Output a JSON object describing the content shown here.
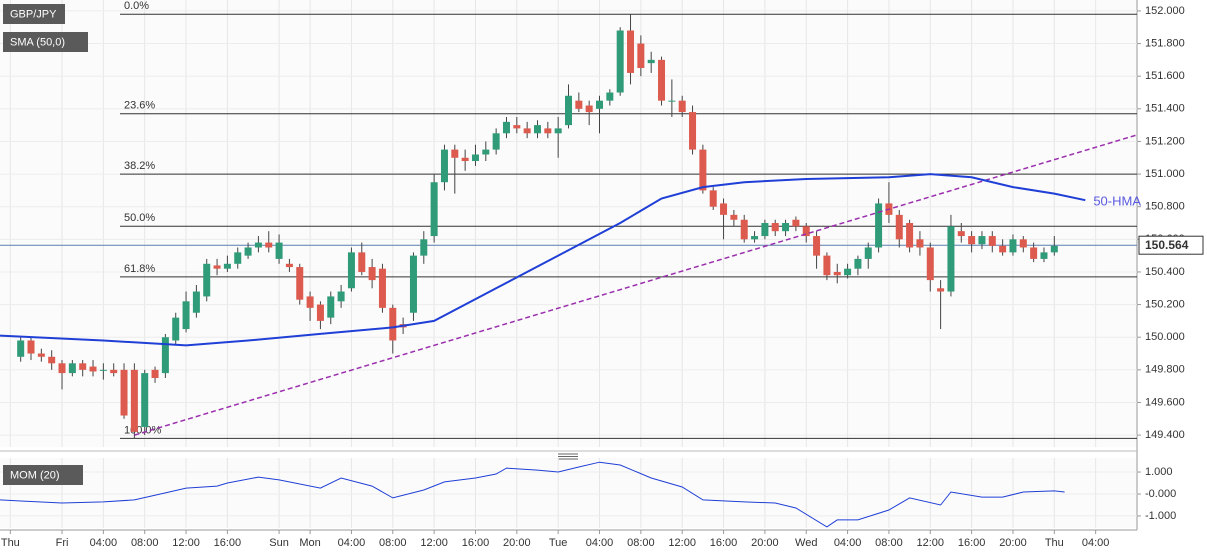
{
  "chart_data": [
    {
      "type": "candlestick",
      "symbol": "GBP/JPY",
      "indicator": "SMA (50,0)",
      "hma_label": "50-HMA",
      "last_price": 150.564,
      "xlim": [
        -1,
        109
      ],
      "ylim": [
        149.327,
        152.067
      ],
      "xticks": [
        {
          "value": 0,
          "label": "Thu"
        },
        {
          "value": 5,
          "label": "Fri"
        },
        {
          "value": 9,
          "label": "04:00"
        },
        {
          "value": 13,
          "label": "08:00"
        },
        {
          "value": 17,
          "label": "12:00"
        },
        {
          "value": 21,
          "label": "16:00"
        },
        {
          "value": 26,
          "label": "Sun"
        },
        {
          "value": 29,
          "label": "Mon"
        },
        {
          "value": 33,
          "label": "04:00"
        },
        {
          "value": 37,
          "label": "08:00"
        },
        {
          "value": 41,
          "label": "12:00"
        },
        {
          "value": 45,
          "label": "16:00"
        },
        {
          "value": 49,
          "label": "20:00"
        },
        {
          "value": 53,
          "label": "Tue"
        },
        {
          "value": 57,
          "label": "04:00"
        },
        {
          "value": 61,
          "label": "08:00"
        },
        {
          "value": 65,
          "label": "12:00"
        },
        {
          "value": 69,
          "label": "16:00"
        },
        {
          "value": 73,
          "label": "20:00"
        },
        {
          "value": 77,
          "label": "Wed"
        },
        {
          "value": 81,
          "label": "04:00"
        },
        {
          "value": 85,
          "label": "08:00"
        },
        {
          "value": 89,
          "label": "12:00"
        },
        {
          "value": 93,
          "label": "16:00"
        },
        {
          "value": 97,
          "label": "20:00"
        },
        {
          "value": 101,
          "label": "Thu"
        },
        {
          "value": 105,
          "label": "04:00"
        }
      ],
      "yticks": [
        {
          "value": 149.4,
          "label": "149.400"
        },
        {
          "value": 149.6,
          "label": "149.600"
        },
        {
          "value": 149.8,
          "label": "149.800"
        },
        {
          "value": 150,
          "label": "150.000"
        },
        {
          "value": 150.2,
          "label": "150.200"
        },
        {
          "value": 150.4,
          "label": "150.400"
        },
        {
          "value": 150.6,
          "label": "150.600"
        },
        {
          "value": 150.8,
          "label": "150.800"
        },
        {
          "value": 151,
          "label": "151.000"
        },
        {
          "value": 151.2,
          "label": "151.200"
        },
        {
          "value": 151.4,
          "label": "151.400"
        },
        {
          "value": 151.6,
          "label": "151.600"
        },
        {
          "value": 151.8,
          "label": "151.800"
        },
        {
          "value": 152,
          "label": "152.000"
        }
      ],
      "up_color": "#2f9b78",
      "down_color": "#dd5a4e",
      "x": [
        1,
        2,
        3,
        4,
        5,
        6,
        7,
        8,
        9,
        10,
        11,
        12,
        13,
        14,
        15,
        16,
        17,
        18,
        19,
        20,
        21,
        22,
        23,
        24,
        25,
        26,
        27,
        28,
        29,
        30,
        31,
        32,
        33,
        34,
        35,
        36,
        37,
        38,
        39,
        40,
        41,
        42,
        43,
        44,
        45,
        46,
        47,
        48,
        49,
        50,
        51,
        52,
        53,
        54,
        55,
        56,
        57,
        58,
        59,
        60,
        61,
        62,
        63,
        64,
        65,
        66,
        67,
        68,
        69,
        70,
        71,
        72,
        73,
        74,
        75,
        76,
        77,
        78,
        79,
        80,
        81,
        82,
        83,
        84,
        85,
        86,
        87,
        88,
        89,
        90,
        91,
        92,
        93,
        94,
        95,
        96,
        97,
        98,
        99,
        100,
        101
      ],
      "open": [
        149.88,
        149.98,
        149.9,
        149.88,
        149.84,
        149.78,
        149.84,
        149.82,
        149.8,
        149.8,
        149.8,
        149.8,
        149.45,
        149.8,
        149.78,
        149.98,
        150.05,
        150.15,
        150.25,
        150.44,
        150.42,
        150.45,
        150.5,
        150.55,
        150.58,
        150.48,
        150.45,
        150.43,
        150.25,
        150.2,
        150.12,
        150.22,
        150.3,
        150.52,
        150.43,
        150.42,
        150.18,
        150.08,
        150.15,
        150.5,
        150.62,
        150.95,
        151.15,
        151.1,
        151.08,
        151.12,
        151.15,
        151.25,
        151.3,
        151.28,
        151.25,
        151.28,
        151.25,
        151.3,
        151.45,
        151.42,
        151.4,
        151.45,
        151.5,
        151.88,
        151.8,
        151.68,
        151.7,
        151.45,
        151.45,
        151.38,
        151.15,
        150.9,
        150.82,
        150.75,
        150.72,
        150.6,
        150.62,
        150.7,
        150.65,
        150.72,
        150.68,
        150.62,
        150.5,
        150.4,
        150.38,
        150.42,
        150.48,
        150.55,
        150.82,
        150.75,
        150.7,
        150.6,
        150.55,
        150.3,
        150.28,
        150.65,
        150.62,
        150.57,
        150.62,
        150.56,
        150.52,
        150.6,
        150.55,
        150.48,
        150.52
      ],
      "high": [
        150.0,
        150.0,
        149.93,
        149.92,
        149.86,
        149.86,
        149.86,
        149.86,
        149.84,
        149.84,
        149.84,
        149.84,
        149.8,
        149.82,
        150.02,
        150.15,
        150.28,
        150.32,
        150.48,
        150.48,
        150.5,
        150.55,
        150.58,
        150.62,
        150.65,
        150.63,
        150.48,
        150.45,
        150.28,
        150.22,
        150.28,
        150.32,
        150.55,
        150.58,
        150.48,
        150.45,
        150.2,
        150.12,
        150.52,
        150.65,
        151.0,
        151.18,
        151.18,
        151.15,
        151.18,
        151.2,
        151.28,
        151.35,
        151.35,
        151.32,
        151.33,
        151.32,
        151.35,
        151.55,
        151.5,
        151.45,
        151.48,
        151.52,
        151.9,
        151.98,
        151.85,
        151.75,
        151.72,
        151.58,
        151.48,
        151.42,
        151.18,
        150.92,
        150.85,
        150.78,
        150.75,
        150.65,
        150.72,
        150.72,
        150.72,
        150.74,
        150.7,
        150.65,
        150.52,
        150.45,
        150.45,
        150.5,
        150.58,
        150.85,
        150.95,
        150.78,
        150.72,
        150.65,
        150.58,
        150.35,
        150.75,
        150.7,
        150.65,
        150.65,
        150.65,
        150.6,
        150.63,
        150.62,
        150.58,
        150.55,
        150.62
      ],
      "low": [
        149.85,
        149.86,
        149.85,
        149.8,
        149.68,
        149.76,
        149.76,
        149.76,
        149.74,
        149.76,
        149.5,
        149.38,
        149.4,
        149.72,
        149.75,
        149.95,
        150.03,
        150.12,
        150.22,
        150.38,
        150.4,
        150.42,
        150.48,
        150.52,
        150.52,
        150.45,
        150.4,
        150.2,
        150.1,
        150.05,
        150.08,
        150.18,
        150.28,
        150.38,
        150.3,
        150.15,
        149.9,
        150.02,
        150.1,
        150.45,
        150.58,
        150.9,
        150.88,
        151.02,
        151.05,
        151.08,
        151.12,
        151.22,
        151.25,
        151.22,
        151.22,
        151.22,
        151.1,
        151.28,
        151.38,
        151.3,
        151.25,
        151.42,
        151.48,
        151.55,
        151.6,
        151.62,
        151.42,
        151.35,
        151.35,
        151.12,
        150.88,
        150.78,
        150.6,
        150.68,
        150.58,
        150.58,
        150.6,
        150.62,
        150.62,
        150.65,
        150.58,
        150.42,
        150.35,
        150.33,
        150.36,
        150.38,
        150.42,
        150.52,
        150.7,
        150.55,
        150.52,
        150.5,
        150.28,
        150.05,
        150.25,
        150.58,
        150.52,
        150.54,
        150.52,
        150.5,
        150.5,
        150.52,
        150.46,
        150.46,
        150.5
      ],
      "close": [
        149.98,
        149.9,
        149.88,
        149.84,
        149.78,
        149.84,
        149.8,
        149.79,
        149.8,
        149.78,
        149.52,
        149.42,
        149.78,
        149.75,
        150.0,
        150.12,
        150.22,
        150.28,
        150.45,
        150.42,
        150.45,
        150.52,
        150.55,
        150.58,
        150.55,
        150.58,
        150.43,
        150.23,
        150.18,
        150.1,
        150.25,
        150.28,
        150.52,
        150.4,
        150.35,
        150.18,
        149.98,
        150.06,
        150.5,
        150.6,
        150.95,
        151.15,
        151.1,
        151.08,
        151.12,
        151.15,
        151.25,
        151.32,
        151.28,
        151.25,
        151.3,
        151.25,
        151.28,
        151.48,
        151.4,
        151.38,
        151.45,
        151.5,
        151.88,
        151.62,
        151.65,
        151.7,
        151.45,
        151.45,
        151.38,
        151.15,
        150.9,
        150.8,
        150.75,
        150.72,
        150.6,
        150.62,
        150.7,
        150.65,
        150.7,
        150.68,
        150.62,
        150.5,
        150.38,
        150.38,
        150.42,
        150.48,
        150.55,
        150.82,
        150.75,
        150.6,
        150.55,
        150.55,
        150.35,
        150.28,
        150.68,
        150.62,
        150.57,
        150.62,
        150.56,
        150.52,
        150.6,
        150.55,
        150.48,
        150.52,
        150.56
      ],
      "hma": {
        "color": "#1f3fd6",
        "x": [
          -1,
          9,
          17,
          23,
          30,
          37,
          41,
          47,
          53,
          59,
          63,
          67,
          71,
          77,
          85,
          89,
          93,
          97,
          101,
          104
        ],
        "values": [
          150.01,
          149.98,
          149.95,
          149.98,
          150.02,
          150.06,
          150.1,
          150.3,
          150.5,
          150.7,
          150.85,
          150.92,
          150.95,
          150.97,
          150.98,
          151.0,
          150.98,
          150.92,
          150.88,
          150.84
        ]
      },
      "trendline": {
        "color": "#9b2fae",
        "x": [
          12,
          109
        ],
        "values": [
          149.4,
          151.24
        ]
      },
      "fib_levels": [
        {
          "label": "0.0%",
          "value": 151.98
        },
        {
          "label": "23.6%",
          "value": 151.37
        },
        {
          "label": "38.2%",
          "value": 151.0
        },
        {
          "label": "50.0%",
          "value": 150.68
        },
        {
          "label": "61.8%",
          "value": 150.37
        },
        {
          "label": "100.0%",
          "value": 149.38
        }
      ]
    },
    {
      "type": "line",
      "indicator": "MOM (20)",
      "color": "#1f3fd6",
      "xlim": [
        -1,
        109
      ],
      "ylim": [
        -1.55,
        1.64
      ],
      "yticks": [
        {
          "value": 1,
          "label": "1.000"
        },
        {
          "value": 0,
          "label": "-0.000"
        },
        {
          "value": -1,
          "label": "-1.000"
        }
      ],
      "x": [
        -1,
        1,
        5,
        9,
        12,
        15,
        17,
        20,
        21,
        24,
        26,
        30,
        32,
        35,
        37,
        40,
        42,
        45,
        47,
        48,
        51,
        53,
        55,
        57,
        59,
        62,
        65,
        67,
        71,
        74,
        76,
        79,
        80,
        82,
        85,
        87,
        90,
        91,
        94,
        96,
        98,
        101,
        102
      ],
      "values": [
        -0.27,
        -0.32,
        -0.41,
        -0.36,
        -0.27,
        0.05,
        0.27,
        0.36,
        0.5,
        0.77,
        0.64,
        0.27,
        0.73,
        0.36,
        -0.18,
        0.18,
        0.55,
        0.73,
        0.91,
        1.18,
        1.09,
        1.0,
        1.23,
        1.45,
        1.32,
        0.73,
        0.32,
        -0.27,
        -0.36,
        -0.41,
        -0.64,
        -1.5,
        -1.18,
        -1.18,
        -0.73,
        -0.18,
        -0.5,
        0.09,
        -0.14,
        -0.14,
        0.09,
        0.14,
        0.09
      ]
    }
  ]
}
